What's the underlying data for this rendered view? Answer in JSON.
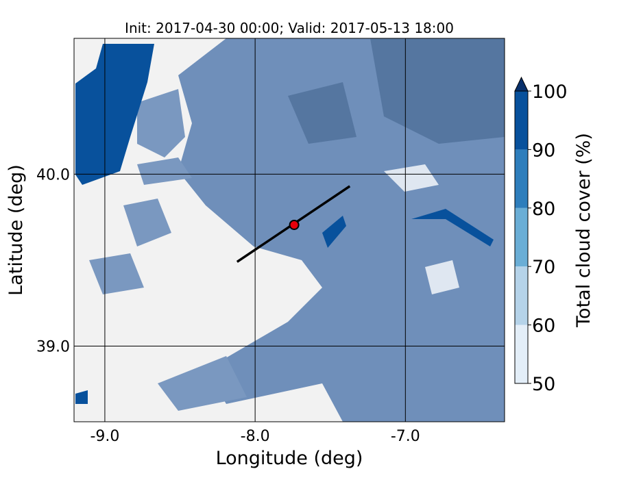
{
  "map": {
    "title": "Init: 2017-04-30 00:00; Valid: 2017-05-13 18:00",
    "xlabel": "Longitude (deg)",
    "ylabel": "Latitude (deg)",
    "xlim": [
      -9.205,
      -6.34
    ],
    "ylim": [
      38.56,
      40.79
    ],
    "xticks": [
      {
        "value": -9,
        "label": "-9.0"
      },
      {
        "value": -8,
        "label": "-8.0"
      },
      {
        "value": -7,
        "label": "-7.0"
      }
    ],
    "yticks": [
      {
        "value": 39,
        "label": "39.0"
      },
      {
        "value": 40,
        "label": "40.0"
      }
    ],
    "colorbar": {
      "label": "Total cloud cover (%)",
      "ticks": [
        50,
        60,
        70,
        80,
        90,
        100
      ],
      "colors": [
        "#e3eef8",
        "#b5d3e9",
        "#6aaed6",
        "#2e7ebc",
        "#08519c"
      ],
      "extend_color": "#08306b"
    },
    "cross_section": {
      "lon": [
        -8.12,
        -7.37
      ],
      "lat": [
        39.49,
        39.93
      ],
      "color": "#000000"
    },
    "marker": {
      "lon": -7.74,
      "lat": 39.705,
      "color": "#e8000b"
    }
  }
}
